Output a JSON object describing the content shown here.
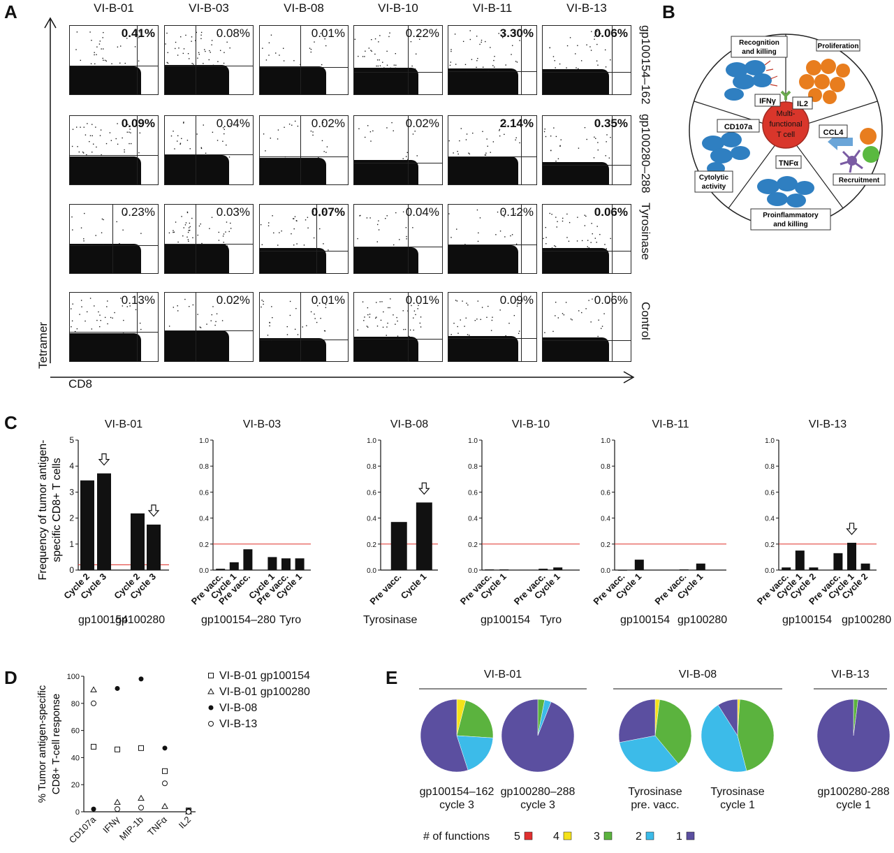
{
  "panel_letters": {
    "a": "A",
    "b": "B",
    "c": "C",
    "d": "D",
    "e": "E"
  },
  "panelA": {
    "columns": [
      "VI-B-01",
      "VI-B-03",
      "VI-B-08",
      "VI-B-10",
      "VI-B-11",
      "VI-B-13"
    ],
    "rows": [
      {
        "label": "gp100154–162",
        "values": [
          "0.41%",
          "0.08%",
          "0.01%",
          "0.22%",
          "3.30%",
          "0.06%"
        ],
        "bold": [
          true,
          false,
          false,
          false,
          true,
          true
        ]
      },
      {
        "label": "gp100280–288",
        "values": [
          "0.09%",
          "0.04%",
          "0.02%",
          "0.02%",
          "2.14%",
          "0.35%"
        ],
        "bold": [
          true,
          false,
          false,
          false,
          true,
          true
        ]
      },
      {
        "label": "Tyrosinase",
        "values": [
          "0.23%",
          "0.03%",
          "0.07%",
          "0.04%",
          "0.12%",
          "0.06%"
        ],
        "bold": [
          false,
          false,
          true,
          false,
          false,
          true
        ]
      },
      {
        "label": "Control",
        "values": [
          "0.13%",
          "0.02%",
          "0.01%",
          "0.01%",
          "0.09%",
          "0.06%"
        ],
        "bold": [
          false,
          false,
          false,
          false,
          false,
          false
        ]
      }
    ],
    "y_axis": "Tetramer",
    "x_axis": "CD8"
  },
  "panelB": {
    "center": "Multi-functional T cell",
    "center_lines": [
      "Multi-",
      "functional",
      "T cell"
    ],
    "labels": {
      "recognition": "Recognition and killing",
      "proliferation": "Proliferation",
      "ifn": "IFNγ",
      "il2": "IL2",
      "cd107a": "CD107a",
      "ccl4": "CCL4",
      "tnf": "TNFα",
      "cytolytic": "Cytolytic activity",
      "recruitment": "Recruitment",
      "proinflammatory": "Proinflammatory and killing"
    },
    "colors": {
      "cell": "#2f7fc1",
      "center": "#d9362b",
      "orange": "#e87d1e",
      "green": "#5ab940",
      "purple": "#7a5ba3"
    }
  },
  "chart_data": [
    {
      "type": "bar",
      "panel": "C",
      "title": "VI-B-01",
      "ylabel": "Frequency of tumor antigen-specific CD8+ T cells",
      "ylim": [
        0,
        5
      ],
      "yticks": [
        0,
        1,
        2,
        3,
        4,
        5
      ],
      "threshold": 0.2,
      "categories": [
        "Cycle 2",
        "Cycle 3",
        "Cycle 2",
        "Cycle 3"
      ],
      "values": [
        3.45,
        3.72,
        2.18,
        1.75
      ],
      "arrows": [
        1,
        3
      ],
      "groups": [
        "gp100154",
        "gp100280"
      ]
    },
    {
      "type": "bar",
      "panel": "C",
      "title": "VI-B-03",
      "ylim": [
        0,
        1.0
      ],
      "yticks": [
        0.0,
        0.2,
        0.4,
        0.6,
        0.8,
        1.0
      ],
      "threshold": 0.2,
      "categories": [
        "Pre vacc.",
        "Cycle 1",
        "Pre vacc.",
        "Cycle 1",
        "Pre vacc.",
        "Cycle 1"
      ],
      "values": [
        0.01,
        0.06,
        0.16,
        0.1,
        0.09,
        0.09
      ],
      "arrows": [],
      "groups": [
        "gp100154–280",
        "Tyro"
      ]
    },
    {
      "type": "bar",
      "panel": "C",
      "title": "VI-B-08",
      "ylim": [
        0,
        1.0
      ],
      "yticks": [
        0.0,
        0.2,
        0.4,
        0.6,
        0.8,
        1.0
      ],
      "threshold": 0.2,
      "categories": [
        "Pre vacc.",
        "Cycle 1"
      ],
      "values": [
        0.37,
        0.52
      ],
      "arrows": [
        1
      ],
      "groups": [
        "Tyrosinase"
      ]
    },
    {
      "type": "bar",
      "panel": "C",
      "title": "VI-B-10",
      "ylim": [
        0,
        1.0
      ],
      "yticks": [
        0.0,
        0.2,
        0.4,
        0.6,
        0.8,
        1.0
      ],
      "threshold": 0.2,
      "categories": [
        "Pre vacc.",
        "Cycle 1",
        "Pre vacc.",
        "Cycle 1"
      ],
      "values": [
        0.005,
        0.005,
        0.01,
        0.02
      ],
      "arrows": [],
      "groups": [
        "gp100154",
        "Tyro"
      ]
    },
    {
      "type": "bar",
      "panel": "C",
      "title": "VI-B-11",
      "ylim": [
        0,
        1.0
      ],
      "yticks": [
        0.0,
        0.2,
        0.4,
        0.6,
        0.8,
        1.0
      ],
      "threshold": 0.2,
      "categories": [
        "Pre vacc.",
        "Cycle 1",
        "Pre vacc.",
        "Cycle 1"
      ],
      "values": [
        0.0,
        0.08,
        0.005,
        0.05
      ],
      "arrows": [],
      "groups": [
        "gp100154",
        "gp100280"
      ]
    },
    {
      "type": "bar",
      "panel": "C",
      "title": "VI-B-13",
      "ylim": [
        0,
        1.0
      ],
      "yticks": [
        0.0,
        0.2,
        0.4,
        0.6,
        0.8,
        1.0
      ],
      "threshold": 0.2,
      "categories": [
        "Pre vacc.",
        "Cycle 1",
        "Cycle 2",
        "Pre vacc.",
        "Cycle 1",
        "Cycle 2"
      ],
      "values": [
        0.02,
        0.15,
        0.02,
        0.13,
        0.21,
        0.05
      ],
      "arrows": [
        4
      ],
      "groups": [
        "gp100154",
        "gp100280"
      ]
    },
    {
      "type": "scatter",
      "panel": "D",
      "ylabel": "% Tumor antigen-specific CD8+ T-cell response",
      "ylim": [
        0,
        100
      ],
      "yticks": [
        0,
        20,
        40,
        60,
        80,
        100
      ],
      "categories": [
        "CD107a",
        "IFNγ",
        "MIP-1b",
        "TNFα",
        "IL2"
      ],
      "series": [
        {
          "name": "VI-B-01 gp100154",
          "marker": "square",
          "values": [
            48,
            46,
            47,
            30,
            1
          ]
        },
        {
          "name": "VI-B-01 gp100280",
          "marker": "triangle",
          "values": [
            90,
            7,
            10,
            4,
            0
          ]
        },
        {
          "name": "VI-B-08",
          "marker": "filled",
          "values": [
            2,
            91,
            98,
            47,
            1
          ]
        },
        {
          "name": "VI-B-13",
          "marker": "circle",
          "values": [
            80,
            2,
            3,
            21,
            0
          ]
        }
      ]
    },
    {
      "type": "pie",
      "panel": "E",
      "groups": [
        {
          "title": "VI-B-01",
          "charts": [
            {
              "label": "gp100154–162 cycle 3",
              "line1": "gp100154–162",
              "line2": "cycle 3",
              "slices": [
                0,
                4,
                22,
                19,
                55
              ]
            },
            {
              "label": "gp100280–288 cycle 3",
              "line1": "gp100280–288",
              "line2": "cycle 3",
              "slices": [
                0,
                0,
                3,
                3,
                94
              ]
            }
          ]
        },
        {
          "title": "VI-B-08",
          "charts": [
            {
              "label": "Tyrosinase pre. vacc.",
              "line1": "Tyrosinase",
              "line2": "pre. vacc.",
              "slices": [
                0,
                2,
                37,
                33,
                28
              ]
            },
            {
              "label": "Tyrosinase cycle 1",
              "line1": "Tyrosinase",
              "line2": "cycle 1",
              "slices": [
                0,
                1,
                45,
                45,
                9
              ]
            }
          ]
        },
        {
          "title": "VI-B-13",
          "charts": [
            {
              "label": "gp100280-288 cycle 1",
              "line1": "gp100280-288",
              "line2": "cycle 1",
              "slices": [
                0,
                0,
                2,
                0,
                98
              ]
            }
          ]
        }
      ],
      "legend_title": "# of functions",
      "legend": [
        {
          "name": "5",
          "color": "#e03030"
        },
        {
          "name": "4",
          "color": "#f5e21a"
        },
        {
          "name": "3",
          "color": "#5bb33e"
        },
        {
          "name": "2",
          "color": "#3cbbe9"
        },
        {
          "name": "1",
          "color": "#5b4fa0"
        }
      ]
    }
  ]
}
